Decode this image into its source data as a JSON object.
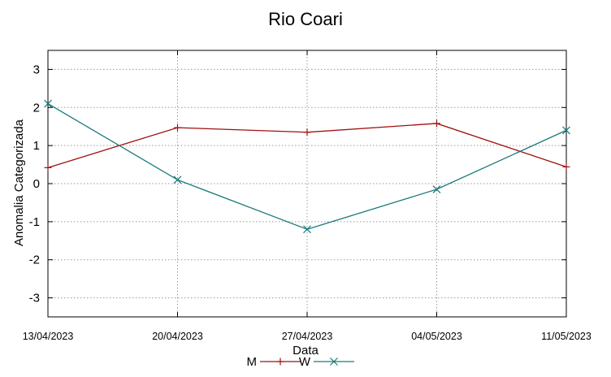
{
  "chart_data": {
    "type": "line",
    "title": "Rio Coari",
    "xlabel": "Data",
    "ylabel": "Anomalia Categorizada",
    "categories": [
      "13/04/2023",
      "20/04/2023",
      "27/04/2023",
      "04/05/2023",
      "11/05/2023"
    ],
    "ylim": [
      -3.5,
      3.5
    ],
    "yticks": [
      -3,
      -2,
      -1,
      0,
      1,
      2,
      3
    ],
    "grid": true,
    "legend_position": "bottom-center",
    "series": [
      {
        "name": "M",
        "marker": "plus",
        "color": "#a01010",
        "values": [
          0.42,
          1.47,
          1.35,
          1.58,
          0.44
        ]
      },
      {
        "name": "W",
        "marker": "cross",
        "color": "#1a7a7a",
        "values": [
          2.1,
          0.1,
          -1.2,
          -0.15,
          1.4
        ]
      }
    ]
  }
}
